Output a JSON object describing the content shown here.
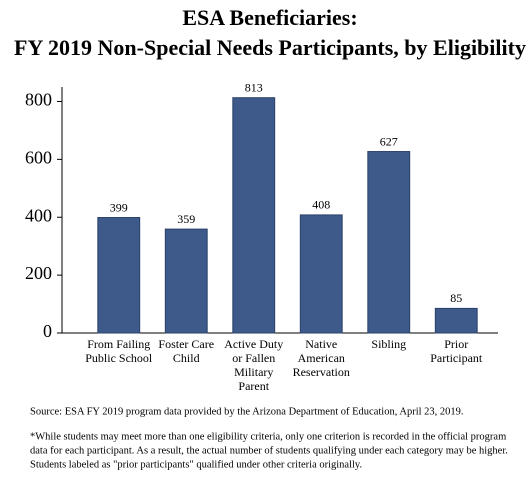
{
  "chart_data": {
    "type": "bar",
    "title": [
      "ESA Beneficiaries:",
      "FY 2019 Non-Special Needs Participants, by Eligibility"
    ],
    "categories": [
      [
        "From Failing",
        "Public School"
      ],
      [
        "Foster Care",
        "Child"
      ],
      [
        "Active Duty",
        "or Fallen",
        "Military",
        "Parent"
      ],
      [
        "Native",
        "American",
        "Reservation"
      ],
      [
        "Sibling"
      ],
      [
        "Prior",
        "Participant"
      ]
    ],
    "values": [
      399,
      359,
      813,
      408,
      627,
      85
    ],
    "color": "#3d5a8a",
    "ylim": [
      0,
      850
    ],
    "yticks": [
      0,
      200,
      400,
      600,
      800
    ],
    "grid": false,
    "source": "Source:  ESA FY 2019 program data provided by the Arizona Department of Education, April 23, 2019.",
    "footnote": [
      "*While students may meet more than one eligibility criteria, only one criterion is recorded in the official program",
      "data for each participant. As a result, the actual number of students qualifying under each category may be higher.",
      "Students labeled as \"prior participants\" qualified under other criteria originally."
    ]
  }
}
